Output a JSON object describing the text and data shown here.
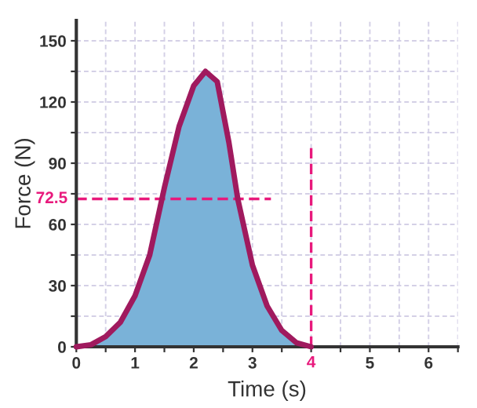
{
  "chart_data": {
    "type": "area",
    "xlabel": "Time (s)",
    "ylabel": "Force (N)",
    "x": [
      0,
      0.25,
      0.5,
      0.75,
      1,
      1.25,
      1.5,
      1.75,
      2,
      2.2,
      2.4,
      2.6,
      2.75,
      3,
      3.25,
      3.5,
      3.75,
      4
    ],
    "series": [
      {
        "color": "#7ab2d8",
        "values": [
          0,
          1,
          5,
          12,
          25,
          45,
          78,
          108,
          128,
          135,
          130,
          100,
          72.5,
          40,
          20,
          8,
          2,
          0
        ]
      }
    ],
    "xlim": [
      0,
      6.5
    ],
    "ylim": [
      0,
      160
    ],
    "xticks": [
      0,
      {
        "value": 0.5,
        "label": null
      },
      1,
      {
        "value": 1.5,
        "label": null
      },
      2,
      {
        "value": 2.5,
        "label": null
      },
      3,
      {
        "value": 3.5,
        "label": null
      },
      {
        "value": 4,
        "label": null
      },
      {
        "value": 4.5,
        "label": null
      },
      5,
      {
        "value": 5.5,
        "label": null
      },
      6,
      {
        "value": 6.5,
        "label": null
      }
    ],
    "yticks": [
      0,
      {
        "value": 15,
        "label": null
      },
      30,
      {
        "value": 45,
        "label": null
      },
      60,
      {
        "value": 75,
        "label": null
      },
      90,
      {
        "value": 105,
        "label": null
      },
      120,
      {
        "value": 135,
        "label": null
      },
      150
    ],
    "grid": true,
    "ref_lines": [
      {
        "axis": "y",
        "value": 72.5,
        "label": "72.5",
        "color": "#e8197c",
        "line_style": "dashed"
      },
      {
        "axis": "x",
        "value": 4,
        "label": "4",
        "color": "#e8197c",
        "line_style": "dashed"
      }
    ]
  }
}
